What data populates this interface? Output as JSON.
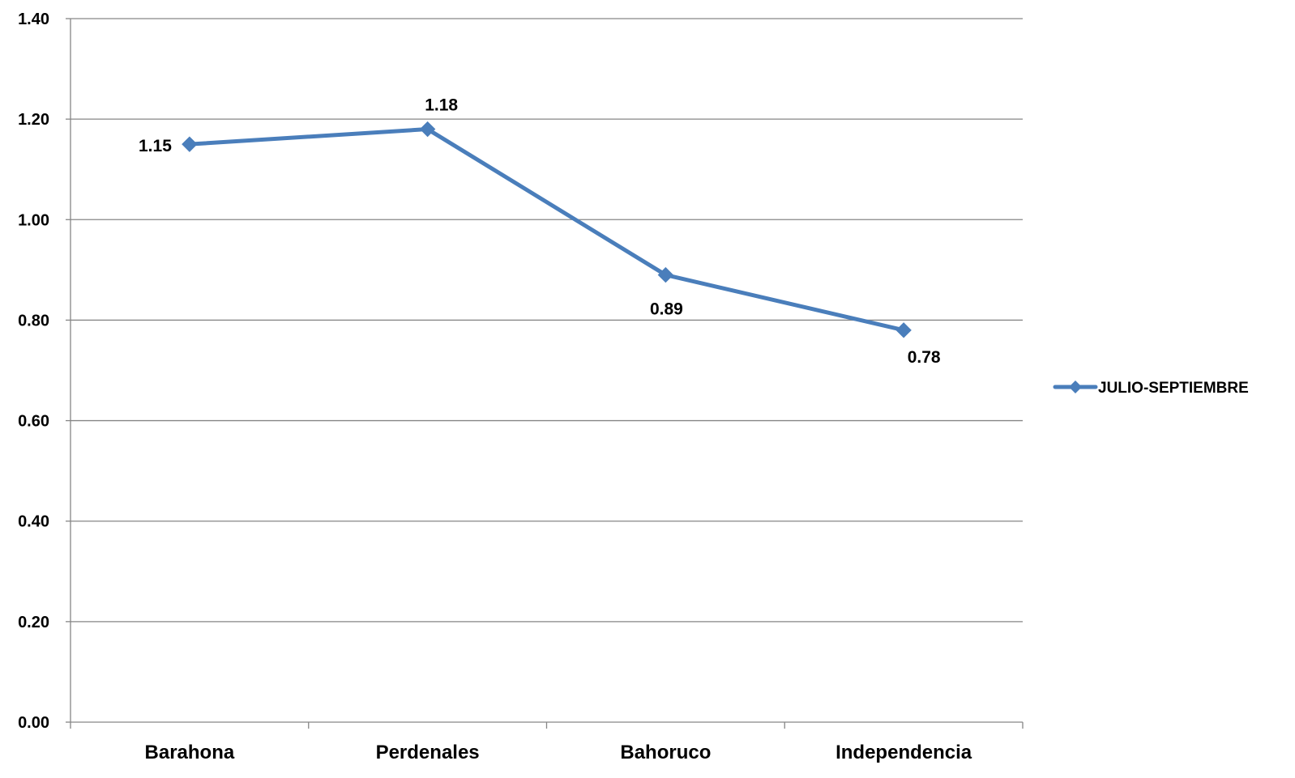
{
  "chart_data": {
    "type": "line",
    "title": "",
    "xlabel": "",
    "ylabel": "",
    "categories": [
      "Barahona",
      "Perdenales",
      "Bahoruco",
      "Independencia"
    ],
    "series": [
      {
        "name": "JULIO-SEPTIEMBRE",
        "values": [
          1.15,
          1.18,
          0.89,
          0.78
        ],
        "data_labels": [
          "1.15",
          "1.18",
          "0.89",
          "0.78"
        ],
        "color": "#4a7ebb",
        "marker": "diamond"
      }
    ],
    "ylim": [
      0,
      1.4
    ],
    "yticks": [
      0,
      0.2,
      0.4,
      0.6,
      0.8,
      1.0,
      1.2,
      1.4
    ],
    "ytick_labels": [
      "0.00",
      "0.20",
      "0.40",
      "0.60",
      "0.80",
      "1.00",
      "1.20",
      "1.40"
    ],
    "grid": true,
    "grid_color": "#868686",
    "legend_position": "right"
  }
}
